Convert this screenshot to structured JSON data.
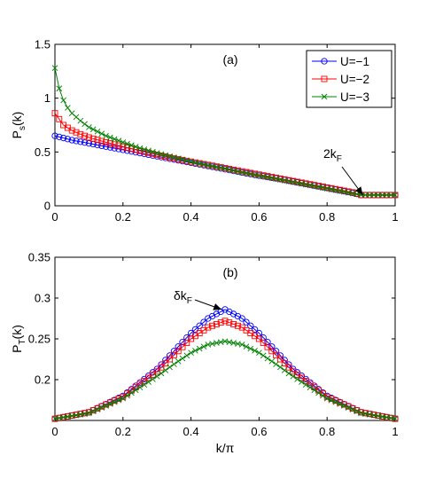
{
  "chart_data": [
    {
      "type": "line",
      "panel_label": "(a)",
      "ylabel_main": "P",
      "ylabel_sub": "s",
      "ylabel_suffix": "(k)",
      "xlabel": "",
      "xlim": [
        0,
        1
      ],
      "ylim": [
        0,
        1.5
      ],
      "xticks": [
        "0",
        "0.2",
        "0.4",
        "0.6",
        "0.8",
        "1"
      ],
      "yticks": [
        "0",
        "0.5",
        "1",
        "1.5"
      ],
      "legend_position": "top-right",
      "annotation": {
        "main": "2k",
        "sub": "F",
        "points_to": [
          0.905,
          0.1
        ]
      },
      "series": [
        {
          "name": "U=−1",
          "color": "#0000ff",
          "marker": "circle",
          "x": [
            0,
            0.025,
            0.05,
            0.075,
            0.1,
            0.15,
            0.2,
            0.25,
            0.3,
            0.35,
            0.4,
            0.45,
            0.5,
            0.55,
            0.6,
            0.65,
            0.7,
            0.75,
            0.8,
            0.85,
            0.875,
            0.9,
            0.925,
            0.95,
            0.975,
            1.0
          ],
          "y": [
            0.65,
            0.63,
            0.61,
            0.595,
            0.58,
            0.55,
            0.52,
            0.49,
            0.46,
            0.43,
            0.4,
            0.37,
            0.34,
            0.31,
            0.28,
            0.255,
            0.225,
            0.195,
            0.165,
            0.135,
            0.12,
            0.1,
            0.1,
            0.1,
            0.1,
            0.1
          ]
        },
        {
          "name": "U=−2",
          "color": "#ff0000",
          "marker": "square",
          "x": [
            0,
            0.025,
            0.05,
            0.075,
            0.1,
            0.15,
            0.2,
            0.25,
            0.3,
            0.35,
            0.4,
            0.45,
            0.5,
            0.55,
            0.6,
            0.65,
            0.7,
            0.75,
            0.8,
            0.85,
            0.875,
            0.9,
            0.925,
            0.95,
            0.975,
            1.0
          ],
          "y": [
            0.86,
            0.75,
            0.7,
            0.665,
            0.635,
            0.59,
            0.55,
            0.51,
            0.475,
            0.44,
            0.41,
            0.38,
            0.35,
            0.32,
            0.29,
            0.26,
            0.23,
            0.2,
            0.17,
            0.14,
            0.125,
            0.1,
            0.1,
            0.1,
            0.1,
            0.1
          ]
        },
        {
          "name": "U=−3",
          "color": "#008000",
          "marker": "x",
          "x": [
            0,
            0.0125,
            0.025,
            0.0375,
            0.05,
            0.075,
            0.1,
            0.15,
            0.2,
            0.25,
            0.3,
            0.35,
            0.4,
            0.45,
            0.5,
            0.55,
            0.6,
            0.65,
            0.7,
            0.75,
            0.8,
            0.85,
            0.875,
            0.9,
            0.925,
            0.95,
            0.975,
            1.0
          ],
          "y": [
            1.28,
            1.09,
            0.98,
            0.91,
            0.86,
            0.79,
            0.73,
            0.65,
            0.59,
            0.535,
            0.49,
            0.45,
            0.41,
            0.375,
            0.345,
            0.31,
            0.28,
            0.25,
            0.22,
            0.19,
            0.16,
            0.13,
            0.115,
            0.1,
            0.1,
            0.1,
            0.1,
            0.1
          ]
        }
      ]
    },
    {
      "type": "line",
      "panel_label": "(b)",
      "ylabel_main": "P",
      "ylabel_sub": "T",
      "ylabel_suffix": "(k)",
      "xlabel": "k/π",
      "xlim": [
        0,
        1
      ],
      "ylim": [
        0.15,
        0.35
      ],
      "xticks": [
        "0",
        "0.2",
        "0.4",
        "0.6",
        "0.8",
        "1"
      ],
      "yticks": [
        "0.2",
        "0.25",
        "0.3",
        "0.35"
      ],
      "annotation": {
        "main": "δk",
        "sub": "F",
        "points_to": [
          0.49,
          0.286
        ]
      },
      "series": [
        {
          "name": "U=−1",
          "color": "#0000ff",
          "marker": "circle",
          "x": [
            0,
            0.1,
            0.2,
            0.3,
            0.35,
            0.4,
            0.45,
            0.5,
            0.55,
            0.6,
            0.65,
            0.7,
            0.8,
            0.9,
            1.0
          ],
          "y": [
            0.152,
            0.16,
            0.18,
            0.213,
            0.235,
            0.257,
            0.275,
            0.286,
            0.275,
            0.257,
            0.235,
            0.213,
            0.18,
            0.16,
            0.152
          ]
        },
        {
          "name": "U=−2",
          "color": "#ff0000",
          "marker": "square",
          "x": [
            0,
            0.1,
            0.2,
            0.3,
            0.35,
            0.4,
            0.45,
            0.5,
            0.55,
            0.6,
            0.65,
            0.7,
            0.8,
            0.9,
            1.0
          ],
          "y": [
            0.152,
            0.16,
            0.179,
            0.21,
            0.23,
            0.25,
            0.264,
            0.272,
            0.264,
            0.25,
            0.23,
            0.21,
            0.179,
            0.16,
            0.152
          ]
        },
        {
          "name": "U=−3",
          "color": "#008000",
          "marker": "x",
          "x": [
            0,
            0.1,
            0.2,
            0.3,
            0.35,
            0.4,
            0.45,
            0.5,
            0.55,
            0.6,
            0.65,
            0.7,
            0.8,
            0.9,
            1.0
          ],
          "y": [
            0.152,
            0.159,
            0.177,
            0.204,
            0.219,
            0.233,
            0.243,
            0.247,
            0.243,
            0.233,
            0.219,
            0.204,
            0.177,
            0.159,
            0.152
          ]
        }
      ]
    }
  ]
}
